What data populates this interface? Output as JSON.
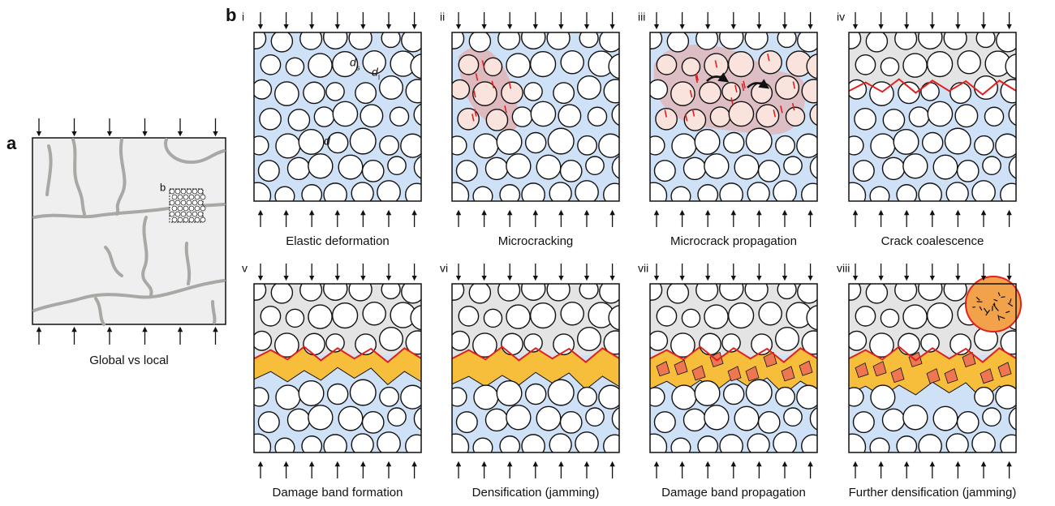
{
  "panel_a": {
    "label": "a",
    "inset_label": "b",
    "caption": "Global vs local"
  },
  "panel_b": {
    "label": "b",
    "annotations": [
      {
        "text": "d",
        "sub": "s"
      },
      {
        "text": "d",
        "sub": "l"
      },
      {
        "text": "d"
      }
    ],
    "subpanels": [
      {
        "numeral": "i",
        "caption": "Elastic deformation"
      },
      {
        "numeral": "ii",
        "caption": "Microcracking"
      },
      {
        "numeral": "iii",
        "caption": "Microcrack propagation"
      },
      {
        "numeral": "iv",
        "caption": "Crack coalescence"
      },
      {
        "numeral": "v",
        "caption": "Damage band formation"
      },
      {
        "numeral": "vi",
        "caption": "Densification (jamming)"
      },
      {
        "numeral": "vii",
        "caption": "Damage band propagation"
      },
      {
        "numeral": "viii",
        "caption": "Further densification (jamming)"
      }
    ]
  }
}
